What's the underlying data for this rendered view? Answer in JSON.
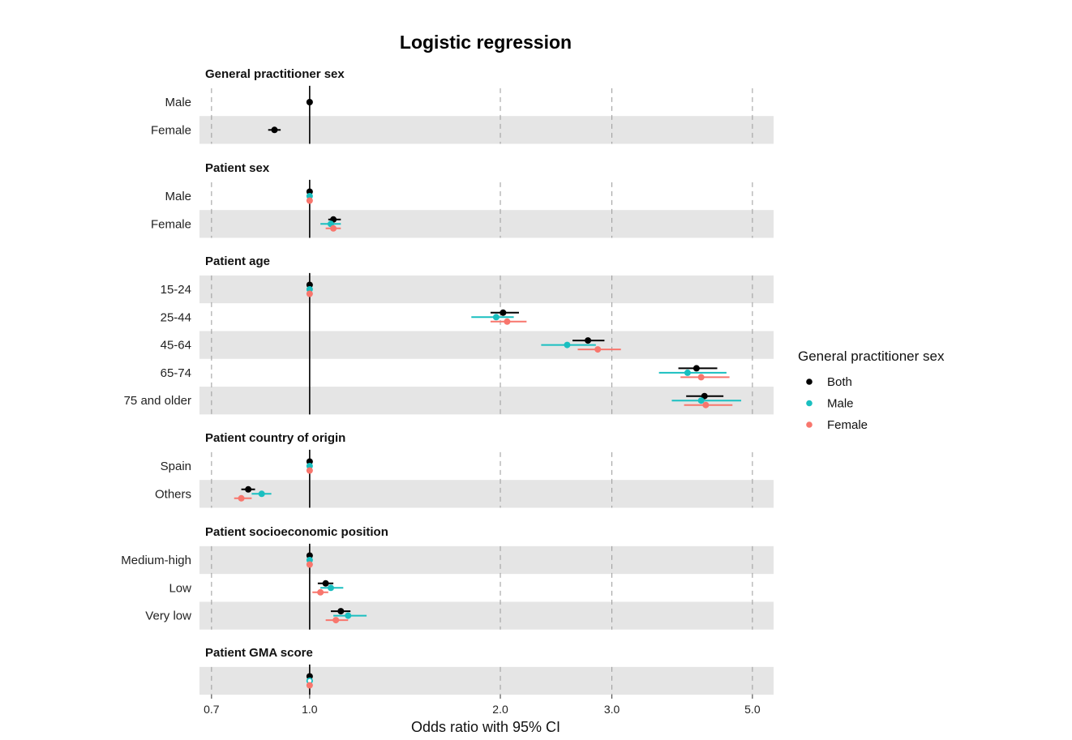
{
  "chart_data": {
    "type": "forest",
    "title": "Logistic regression",
    "xlabel": "Odds ratio with 95% CI",
    "x_scale": "log",
    "xlim": [
      0.67,
      5.4
    ],
    "x_ticks": [
      "0.7",
      "1.0",
      "2.0",
      "3.0",
      "5.0"
    ],
    "x_tick_values": [
      0.7,
      1.0,
      2.0,
      3.0,
      5.0
    ],
    "reference_line": 1.0,
    "legend": {
      "title": "General practitioner sex",
      "position": "right",
      "entries": [
        {
          "name": "Both",
          "color": "#000000"
        },
        {
          "name": "Male",
          "color": "#1ABFC0"
        },
        {
          "name": "Female",
          "color": "#F8766D"
        }
      ]
    },
    "facets": [
      {
        "title": "General practitioner sex",
        "rows": [
          {
            "label": "Male",
            "shaded": false,
            "points": [
              {
                "series": "Both",
                "or": 1.0,
                "lo": 1.0,
                "hi": 1.0,
                "hollow": false
              }
            ]
          },
          {
            "label": "Female",
            "shaded": true,
            "points": [
              {
                "series": "Both",
                "or": 0.88,
                "lo": 0.86,
                "hi": 0.9,
                "hollow": false
              }
            ]
          }
        ]
      },
      {
        "title": "Patient sex",
        "rows": [
          {
            "label": "Male",
            "shaded": false,
            "points": [
              {
                "series": "Both",
                "or": 1.0,
                "lo": 1.0,
                "hi": 1.0,
                "hollow": false
              },
              {
                "series": "Male",
                "or": 1.0,
                "lo": 1.0,
                "hi": 1.0,
                "hollow": false
              },
              {
                "series": "Female",
                "or": 1.0,
                "lo": 1.0,
                "hi": 1.0,
                "hollow": false
              }
            ]
          },
          {
            "label": "Female",
            "shaded": true,
            "points": [
              {
                "series": "Both",
                "or": 1.09,
                "lo": 1.07,
                "hi": 1.12,
                "hollow": false
              },
              {
                "series": "Male",
                "or": 1.08,
                "lo": 1.04,
                "hi": 1.12,
                "hollow": false
              },
              {
                "series": "Female",
                "or": 1.09,
                "lo": 1.06,
                "hi": 1.12,
                "hollow": false
              }
            ]
          }
        ]
      },
      {
        "title": "Patient age",
        "rows": [
          {
            "label": "15-24",
            "shaded": true,
            "points": [
              {
                "series": "Both",
                "or": 1.0,
                "lo": 1.0,
                "hi": 1.0,
                "hollow": false
              },
              {
                "series": "Male",
                "or": 1.0,
                "lo": 1.0,
                "hi": 1.0,
                "hollow": false
              },
              {
                "series": "Female",
                "or": 1.0,
                "lo": 1.0,
                "hi": 1.0,
                "hollow": false
              }
            ]
          },
          {
            "label": "25-44",
            "shaded": false,
            "points": [
              {
                "series": "Both",
                "or": 2.02,
                "lo": 1.93,
                "hi": 2.14,
                "hollow": false
              },
              {
                "series": "Male",
                "or": 1.97,
                "lo": 1.8,
                "hi": 2.1,
                "hollow": false
              },
              {
                "series": "Female",
                "or": 2.05,
                "lo": 1.93,
                "hi": 2.2,
                "hollow": false
              }
            ]
          },
          {
            "label": "45-64",
            "shaded": true,
            "points": [
              {
                "series": "Both",
                "or": 2.75,
                "lo": 2.6,
                "hi": 2.92,
                "hollow": false
              },
              {
                "series": "Male",
                "or": 2.55,
                "lo": 2.32,
                "hi": 2.83,
                "hollow": false
              },
              {
                "series": "Female",
                "or": 2.85,
                "lo": 2.65,
                "hi": 3.1,
                "hollow": false
              }
            ]
          },
          {
            "label": "65-74",
            "shaded": false,
            "points": [
              {
                "series": "Both",
                "or": 4.08,
                "lo": 3.82,
                "hi": 4.4,
                "hollow": false
              },
              {
                "series": "Male",
                "or": 3.95,
                "lo": 3.56,
                "hi": 4.55,
                "hollow": false
              },
              {
                "series": "Female",
                "or": 4.15,
                "lo": 3.85,
                "hi": 4.6,
                "hollow": false
              }
            ]
          },
          {
            "label": "75 and older",
            "shaded": true,
            "points": [
              {
                "series": "Both",
                "or": 4.2,
                "lo": 3.93,
                "hi": 4.5,
                "hollow": false
              },
              {
                "series": "Male",
                "or": 4.15,
                "lo": 3.73,
                "hi": 4.8,
                "hollow": false
              },
              {
                "series": "Female",
                "or": 4.22,
                "lo": 3.9,
                "hi": 4.65,
                "hollow": false
              }
            ]
          }
        ]
      },
      {
        "title": "Patient country of origin",
        "rows": [
          {
            "label": "Spain",
            "shaded": false,
            "points": [
              {
                "series": "Both",
                "or": 1.0,
                "lo": 1.0,
                "hi": 1.0,
                "hollow": false
              },
              {
                "series": "Male",
                "or": 1.0,
                "lo": 1.0,
                "hi": 1.0,
                "hollow": false
              },
              {
                "series": "Female",
                "or": 1.0,
                "lo": 1.0,
                "hi": 1.0,
                "hollow": false
              }
            ]
          },
          {
            "label": "Others",
            "shaded": true,
            "points": [
              {
                "series": "Both",
                "or": 0.8,
                "lo": 0.78,
                "hi": 0.82,
                "hollow": false
              },
              {
                "series": "Male",
                "or": 0.84,
                "lo": 0.81,
                "hi": 0.87,
                "hollow": false
              },
              {
                "series": "Female",
                "or": 0.78,
                "lo": 0.76,
                "hi": 0.81,
                "hollow": false
              }
            ]
          }
        ]
      },
      {
        "title": "Patient socioeconomic position",
        "rows": [
          {
            "label": "Medium-high",
            "shaded": true,
            "points": [
              {
                "series": "Both",
                "or": 1.0,
                "lo": 1.0,
                "hi": 1.0,
                "hollow": false
              },
              {
                "series": "Male",
                "or": 1.0,
                "lo": 1.0,
                "hi": 1.0,
                "hollow": false
              },
              {
                "series": "Female",
                "or": 1.0,
                "lo": 1.0,
                "hi": 1.0,
                "hollow": false
              }
            ]
          },
          {
            "label": "Low",
            "shaded": false,
            "points": [
              {
                "series": "Both",
                "or": 1.06,
                "lo": 1.03,
                "hi": 1.09,
                "hollow": false
              },
              {
                "series": "Male",
                "or": 1.08,
                "lo": 1.04,
                "hi": 1.13,
                "hollow": false
              },
              {
                "series": "Female",
                "or": 1.04,
                "lo": 1.01,
                "hi": 1.07,
                "hollow": false
              }
            ]
          },
          {
            "label": "Very low",
            "shaded": true,
            "points": [
              {
                "series": "Both",
                "or": 1.12,
                "lo": 1.08,
                "hi": 1.16,
                "hollow": false
              },
              {
                "series": "Male",
                "or": 1.15,
                "lo": 1.09,
                "hi": 1.23,
                "hollow": false
              },
              {
                "series": "Female",
                "or": 1.1,
                "lo": 1.06,
                "hi": 1.15,
                "hollow": false
              }
            ]
          }
        ]
      },
      {
        "title": "Patient GMA score",
        "rows": [
          {
            "label": "",
            "shaded": true,
            "points": [
              {
                "series": "Both",
                "or": 1.0,
                "lo": 1.0,
                "hi": 1.0,
                "hollow": false
              },
              {
                "series": "Male",
                "or": 1.0,
                "lo": 1.0,
                "hi": 1.0,
                "hollow": true
              },
              {
                "series": "Female",
                "or": 1.0,
                "lo": 1.0,
                "hi": 1.0,
                "hollow": false
              }
            ]
          }
        ]
      }
    ]
  }
}
